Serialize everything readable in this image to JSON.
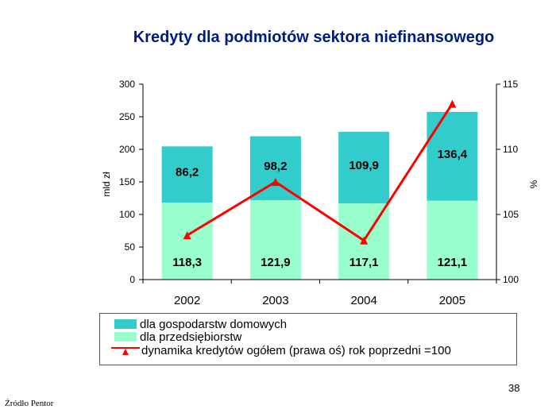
{
  "title": "Kredyty dla podmiotów sektora niefinansowego",
  "colors": {
    "households": "#33cccc",
    "enterprises": "#99ffcc",
    "dynamics": "#ff0000",
    "title": "#001a80"
  },
  "legend": {
    "households": "dla gospodarstw domowych",
    "enterprises": "dla przedsiębiorstw",
    "dynamics": "dynamika kredytów ogółem (prawa oś) rok poprzedni =100"
  },
  "page_number": "38",
  "source": "Źródło Pentor",
  "chart_data": {
    "type": "bar",
    "stacked": true,
    "categories": [
      "2002",
      "2003",
      "2004",
      "2005"
    ],
    "series": [
      {
        "name": "dla przedsiębiorstw",
        "values": [
          118.3,
          121.9,
          117.1,
          121.1
        ],
        "labels": [
          "118,3",
          "121,9",
          "117,1",
          "121,1"
        ]
      },
      {
        "name": "dla gospodarstw domowych",
        "values": [
          86.2,
          98.2,
          109.9,
          136.4
        ],
        "labels": [
          "86,2",
          "98,2",
          "109,9",
          "136,4"
        ]
      }
    ],
    "line_series": {
      "name": "dynamika kredytów ogółem (prawa oś) rok poprzedni =100",
      "axis": "right",
      "values": [
        103.4,
        107.5,
        103.0,
        113.5
      ]
    },
    "ylabel": "mld zł",
    "ylim": [
      0,
      300
    ],
    "yticks": [
      "0",
      "50",
      "100",
      "150",
      "200",
      "250",
      "300"
    ],
    "y2label": "%",
    "y2lim": [
      100,
      115
    ],
    "y2ticks": [
      "100",
      "105",
      "110",
      "115"
    ],
    "grid": false
  }
}
